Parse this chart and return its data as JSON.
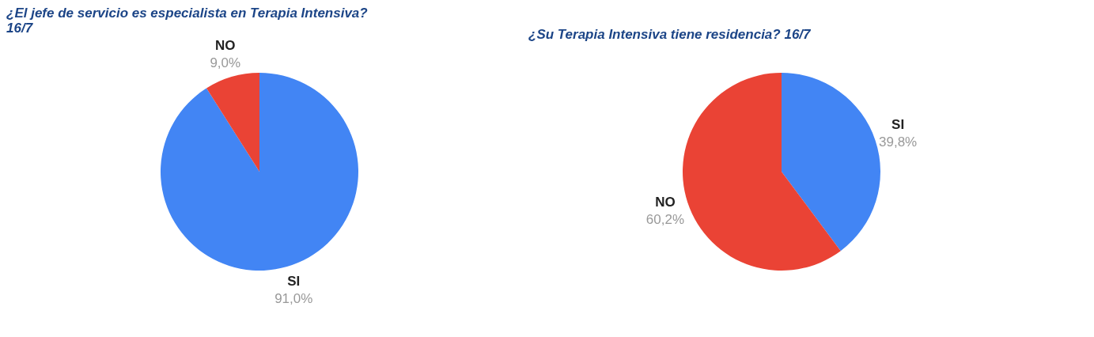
{
  "chart_data": [
    {
      "type": "pie",
      "title": "¿El jefe de servicio es especialista en Terapia Intensiva? 16/7",
      "categories": [
        "SI",
        "NO"
      ],
      "values": [
        91.0,
        9.0
      ],
      "colors": [
        "#4285f4",
        "#ea4335"
      ],
      "value_labels": [
        "91,0%",
        "9,0%"
      ],
      "legend": false
    },
    {
      "type": "pie",
      "title": "¿Su Terapia Intensiva tiene residencia? 16/7",
      "categories": [
        "SI",
        "NO"
      ],
      "values": [
        39.8,
        60.2
      ],
      "colors": [
        "#4285f4",
        "#ea4335"
      ],
      "value_labels": [
        "39,8%",
        "60,2%"
      ],
      "legend": false
    }
  ]
}
